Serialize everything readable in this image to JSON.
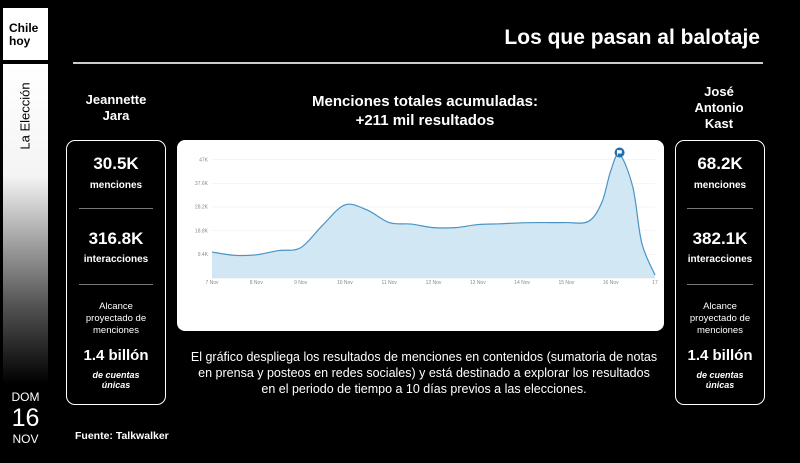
{
  "brand": {
    "line1": "Chile",
    "line2": "hoy"
  },
  "sidebar": {
    "section": "La Elección",
    "date": {
      "dow": "DOM",
      "day": "16",
      "month": "NOV"
    }
  },
  "header": {
    "title": "Los que pasan al balotaje"
  },
  "left": {
    "name_line1": "Jeannette",
    "name_line2": "Jara",
    "mentions_value": "30.5K",
    "mentions_label": "menciones",
    "interactions_value": "316.8K",
    "interactions_label": "interacciones",
    "reach_label_1": "Alcance",
    "reach_label_2": "proyectado de",
    "reach_label_3": "menciones",
    "reach_value": "1.4 billón",
    "reach_sub_1": "de cuentas",
    "reach_sub_2": "únicas"
  },
  "right": {
    "name_line1": "José",
    "name_line2": "Antonio",
    "name_line3": "Kast",
    "mentions_value": "68.2K",
    "mentions_label": "menciones",
    "interactions_value": "382.1K",
    "interactions_label": "interacciones",
    "reach_label_1": "Alcance",
    "reach_label_2": "proyectado de",
    "reach_label_3": "menciones",
    "reach_value": "1.4 billón",
    "reach_sub_1": "de cuentas",
    "reach_sub_2": "únicas"
  },
  "description": "El gráfico despliega los resultados de menciones en contenidos (sumatoria de notas en prensa y posteos en redes sociales) y está destinado a explorar los resultados en el periodo de tiempo a 10 días previos a las elecciones.",
  "source": "Fuente: Talkwalker",
  "colors": {
    "area_fill": "#cfe6f3",
    "line": "#4a94c4",
    "marker": "#1f6fb2"
  },
  "chart_data": {
    "type": "area",
    "title_line1": "Menciones totales acumuladas:",
    "title_line2": "+211 mil resultados",
    "xlabel": "",
    "ylabel": "",
    "x": [
      "7 Nov",
      "8 Nov",
      "9 Nov",
      "10 Nov",
      "11 Nov",
      "12 Nov",
      "13 Nov",
      "14 Nov",
      "15 Nov",
      "16 Nov",
      "17"
    ],
    "ytick_values": [
      9400,
      18800,
      28200,
      37600,
      47000
    ],
    "ytick_labels": [
      "9.4K",
      "18.8K",
      "28.2K",
      "37.6K",
      "47K"
    ],
    "ylim": [
      0,
      50000
    ],
    "points": [
      [
        0.0,
        10300
      ],
      [
        0.5,
        9000
      ],
      [
        1.0,
        9200
      ],
      [
        1.5,
        10900
      ],
      [
        2.0,
        12000
      ],
      [
        2.5,
        21000
      ],
      [
        3.0,
        29000
      ],
      [
        3.5,
        27000
      ],
      [
        4.0,
        22000
      ],
      [
        4.5,
        21400
      ],
      [
        5.0,
        20000
      ],
      [
        5.5,
        20000
      ],
      [
        6.0,
        21200
      ],
      [
        6.5,
        21500
      ],
      [
        7.0,
        21900
      ],
      [
        7.5,
        22000
      ],
      [
        8.0,
        22000
      ],
      [
        8.5,
        22500
      ],
      [
        8.8,
        30000
      ],
      [
        9.0,
        42500
      ],
      [
        9.2,
        49000
      ],
      [
        9.5,
        36000
      ],
      [
        9.7,
        14000
      ],
      [
        10.0,
        1200
      ]
    ],
    "marker_x": 9.2
  }
}
